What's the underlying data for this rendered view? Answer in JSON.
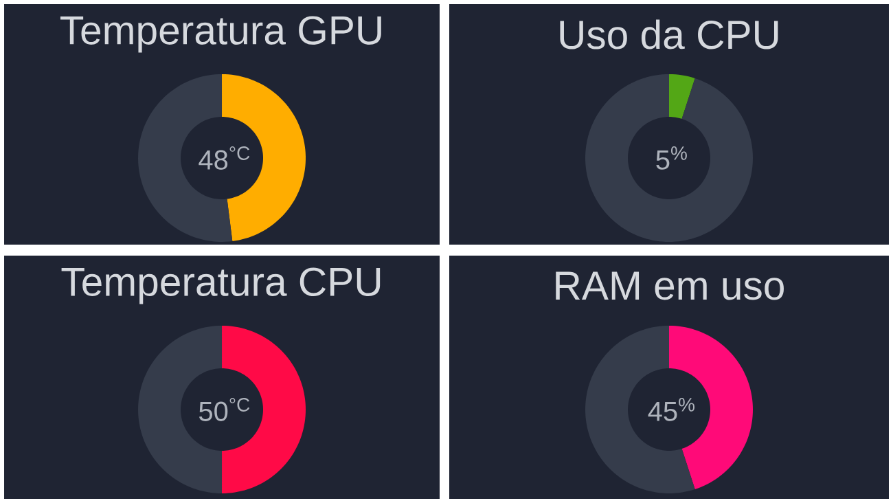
{
  "chart_data": [
    {
      "type": "donut",
      "title": "Temperatura GPU",
      "categories": [
        null,
        null
      ],
      "values": [
        48,
        52
      ],
      "colors": [
        "#ffad00",
        "#353c4b"
      ],
      "annotations": [
        "48$^{°C}$"
      ]
    },
    {
      "type": "donut",
      "title": "Uso da CPU",
      "categories": [
        null,
        null
      ],
      "values": [
        5,
        95
      ],
      "colors": [
        "#53a716",
        "#353c4b"
      ],
      "annotations": [
        "5$^{%}$"
      ]
    },
    {
      "type": "donut",
      "title": "Temperatura CPU",
      "categories": [
        null,
        null
      ],
      "values": [
        50,
        50
      ],
      "colors": [
        "#ff0a47",
        "#353c4b"
      ],
      "annotations": [
        "50$^{°C}$"
      ]
    },
    {
      "type": "donut",
      "title": "RAM em uso",
      "categories": [
        null,
        null
      ],
      "values": [
        45,
        55
      ],
      "colors": [
        "#ff0a78",
        "#353c4b"
      ],
      "annotations": [
        "45$^{%}$"
      ]
    }
  ]
}
